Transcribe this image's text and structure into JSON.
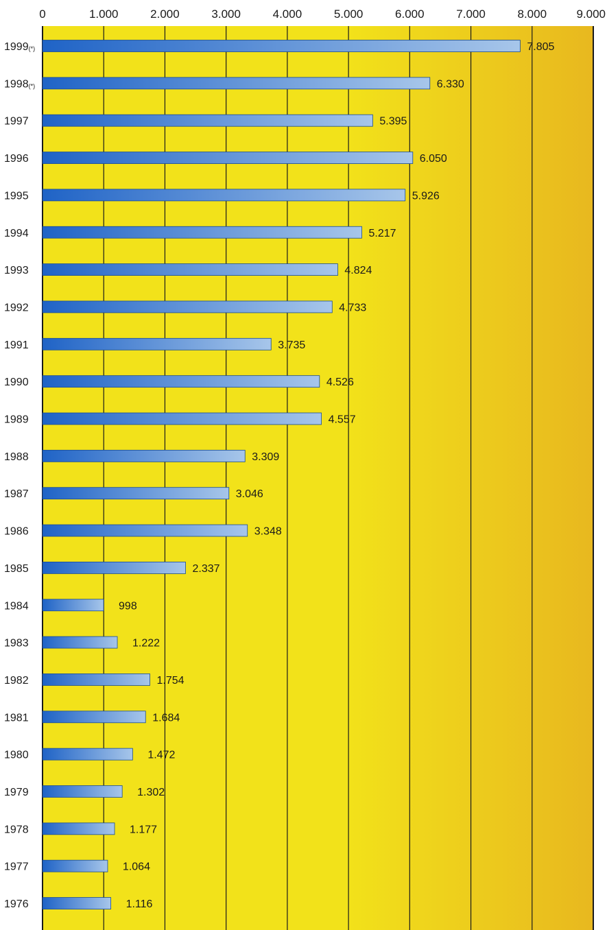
{
  "chart_data": {
    "type": "bar",
    "orientation": "horizontal",
    "title": "",
    "xlabel": "",
    "ylabel": "",
    "xlim": [
      0,
      9000
    ],
    "ticks": [
      "0",
      "1.000",
      "2.000",
      "3.000",
      "4.000",
      "5.000",
      "6.000",
      "7.000",
      "8.000",
      "9.000"
    ],
    "tick_values": [
      0,
      1000,
      2000,
      3000,
      4000,
      5000,
      6000,
      7000,
      8000,
      9000
    ],
    "grid": true,
    "categories": [
      "1999",
      "1998",
      "1997",
      "1996",
      "1995",
      "1994",
      "1993",
      "1992",
      "1991",
      "1990",
      "1989",
      "1988",
      "1987",
      "1986",
      "1985",
      "1984",
      "1983",
      "1982",
      "1981",
      "1980",
      "1979",
      "1978",
      "1977",
      "1976"
    ],
    "category_marks": [
      "(*)",
      "(*)",
      "",
      "",
      "",
      "",
      "",
      "",
      "",
      "",
      "",
      "",
      "",
      "",
      "",
      "",
      "",
      "",
      "",
      "",
      "",
      "",
      "",
      ""
    ],
    "values": [
      7805,
      6330,
      5395,
      6050,
      5926,
      5217,
      4824,
      4733,
      3735,
      4526,
      4557,
      3309,
      3046,
      3348,
      2337,
      998,
      1222,
      1754,
      1684,
      1472,
      1302,
      1177,
      1064,
      1116
    ],
    "value_labels": [
      "7.805",
      "6.330",
      "5.395",
      "6.050",
      "5.926",
      "5.217",
      "4.824",
      "4.733",
      "3.735",
      "4.526",
      "4.557",
      "3.309",
      "3.046",
      "3.348",
      "2.337",
      "998",
      "1.222",
      "1.754",
      "1.684",
      "1.472",
      "1.302",
      "1.177",
      "1.064",
      "1.116"
    ],
    "colors": {
      "bar_dark": "#1f63c6",
      "bar_light": "#a7c6ea",
      "background_light": "#f2e21a",
      "background_dark": "#e8b81f",
      "grid": "#1a1a1a"
    }
  }
}
